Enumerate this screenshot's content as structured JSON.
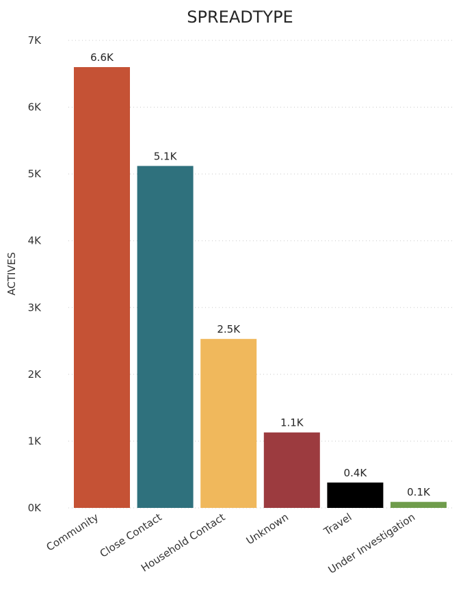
{
  "chart_data": {
    "type": "bar",
    "title": "SPREADTYPE",
    "xlabel": "",
    "ylabel": "ACTIVES",
    "categories": [
      "Community",
      "Close Contact",
      "Household Contact",
      "Unknown",
      "Travel",
      "Under Investigation"
    ],
    "values": [
      6600,
      5120,
      2530,
      1130,
      380,
      90
    ],
    "data_labels": [
      "6.6K",
      "5.1K",
      "2.5K",
      "1.1K",
      "0.4K",
      "0.1K"
    ],
    "colors": [
      "#c55235",
      "#2f717d",
      "#f0b85c",
      "#9c3b3f",
      "#000000",
      "#6f9c4c"
    ],
    "ylim": [
      0,
      7000
    ],
    "yticks": [
      0,
      1000,
      2000,
      3000,
      4000,
      5000,
      6000,
      7000
    ],
    "ytick_labels": [
      "0K",
      "1K",
      "2K",
      "3K",
      "4K",
      "5K",
      "6K",
      "7K"
    ],
    "grid": true,
    "legend": "none"
  }
}
